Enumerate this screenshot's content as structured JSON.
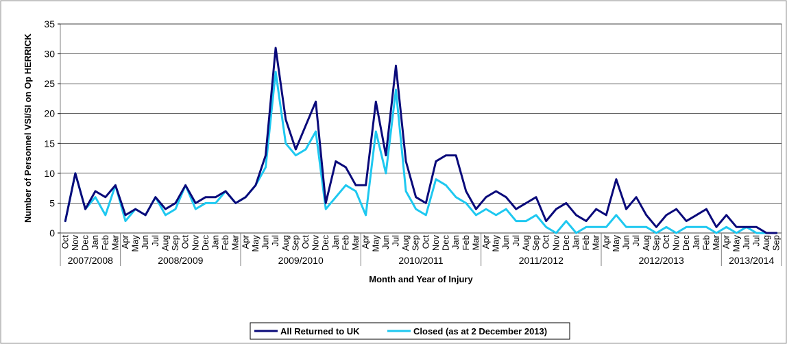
{
  "chart_data": {
    "type": "line",
    "title": "",
    "xlabel": "Month and Year of Injury",
    "ylabel": "Number of Personnel VSI/SI on Op HERRICK",
    "ylim": [
      0,
      35
    ],
    "yticks": [
      0,
      5,
      10,
      15,
      20,
      25,
      30,
      35
    ],
    "grid": true,
    "legend_position": "bottom-center",
    "categories": [
      "Oct",
      "Nov",
      "Dec",
      "Jan",
      "Feb",
      "Mar",
      "Apr",
      "May",
      "Jun",
      "Jul",
      "Aug",
      "Sep",
      "Oct",
      "Nov",
      "Dec",
      "Jan",
      "Feb",
      "Mar",
      "Apr",
      "May",
      "Jun",
      "Jul",
      "Aug",
      "Sep",
      "Oct",
      "Nov",
      "Dec",
      "Jan",
      "Feb",
      "Mar",
      "Apr",
      "May",
      "Jun",
      "Jul",
      "Aug",
      "Sep",
      "Oct",
      "Nov",
      "Dec",
      "Jan",
      "Feb",
      "Mar",
      "Apr",
      "May",
      "Jun",
      "Jul",
      "Aug",
      "Sep",
      "Oct",
      "Nov",
      "Dec",
      "Jan",
      "Feb",
      "Mar",
      "Apr",
      "May",
      "Jun",
      "Jul",
      "Aug",
      "Sep",
      "Oct",
      "Nov",
      "Dec",
      "Jan",
      "Feb",
      "Mar",
      "Apr",
      "May",
      "Jun",
      "Jul",
      "Aug",
      "Sep"
    ],
    "groups": [
      {
        "label": "2007/2008",
        "count": 6
      },
      {
        "label": "2008/2009",
        "count": 12
      },
      {
        "label": "2009/2010",
        "count": 12
      },
      {
        "label": "2010/2011",
        "count": 12
      },
      {
        "label": "2011/2012",
        "count": 12
      },
      {
        "label": "2012/2013",
        "count": 12
      },
      {
        "label": "2013/2014",
        "count": 6
      }
    ],
    "series": [
      {
        "name": "All Returned to UK",
        "color": "#0a0a7a",
        "values": [
          2,
          10,
          4,
          7,
          6,
          8,
          3,
          4,
          3,
          6,
          4,
          5,
          8,
          5,
          6,
          6,
          7,
          5,
          6,
          8,
          13,
          31,
          19,
          14,
          18,
          22,
          5,
          12,
          11,
          8,
          8,
          22,
          13,
          28,
          12,
          6,
          5,
          12,
          13,
          13,
          7,
          4,
          6,
          7,
          6,
          4,
          5,
          6,
          2,
          4,
          5,
          3,
          2,
          4,
          3,
          9,
          4,
          6,
          3,
          1,
          3,
          4,
          2,
          3,
          4,
          1,
          3,
          1,
          1,
          1,
          0,
          0
        ]
      },
      {
        "name": "Closed (as at 2 December 2013)",
        "color": "#1ec8f0",
        "values": [
          2,
          10,
          4,
          6,
          3,
          8,
          2,
          4,
          3,
          6,
          3,
          4,
          8,
          4,
          5,
          5,
          7,
          5,
          6,
          8,
          11,
          27,
          15,
          13,
          14,
          17,
          4,
          6,
          8,
          7,
          3,
          17,
          10,
          24,
          7,
          4,
          3,
          9,
          8,
          6,
          5,
          3,
          4,
          3,
          4,
          2,
          2,
          3,
          1,
          0,
          2,
          0,
          1,
          1,
          1,
          3,
          1,
          1,
          1,
          0,
          1,
          0,
          1,
          1,
          1,
          0,
          1,
          0,
          1,
          0,
          0,
          0
        ]
      }
    ]
  }
}
